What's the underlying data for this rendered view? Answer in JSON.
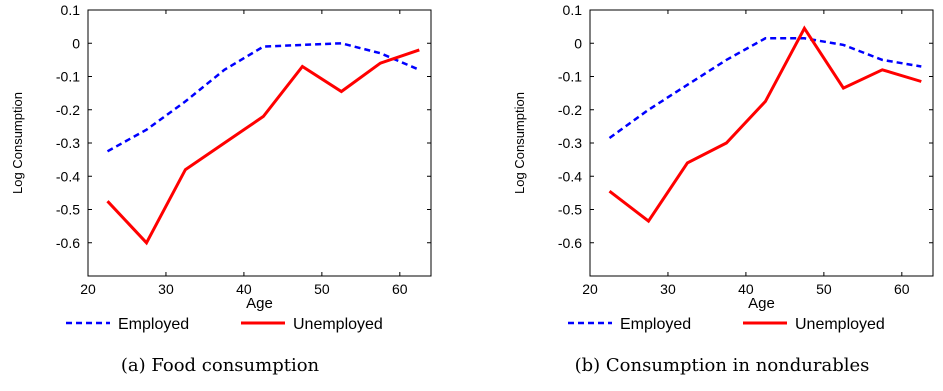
{
  "chart_data": [
    {
      "type": "line",
      "caption": "(a) Food consumption",
      "xlabel": "Age",
      "ylabel": "Log Consumption",
      "xlim": [
        20,
        64
      ],
      "ylim": [
        -0.7,
        0.1
      ],
      "xticks": [
        20,
        30,
        40,
        50,
        60
      ],
      "yticks": [
        0.1,
        0,
        -0.1,
        -0.2,
        -0.3,
        -0.4,
        -0.5,
        -0.6
      ],
      "ytick_labels": [
        "0.1",
        "0",
        "-0.1",
        "-0.2",
        "-0.3",
        "-0.4",
        "-0.5",
        "-0.6"
      ],
      "x": [
        22.5,
        27.5,
        32.5,
        37.5,
        42.5,
        47.5,
        52.5,
        57.5,
        62.5
      ],
      "series": [
        {
          "name": "Employed",
          "color": "#0000ff",
          "dash": "dashed",
          "values": [
            -0.325,
            -0.26,
            -0.175,
            -0.08,
            -0.01,
            -0.005,
            0.0,
            -0.03,
            -0.08
          ]
        },
        {
          "name": "Unemployed",
          "color": "#ff0000",
          "dash": "solid",
          "values": [
            -0.475,
            -0.6,
            -0.38,
            -0.3,
            -0.22,
            -0.07,
            -0.145,
            -0.06,
            -0.02
          ]
        }
      ],
      "legend": "bottom"
    },
    {
      "type": "line",
      "caption": "(b) Consumption in nondurables",
      "xlabel": "Age",
      "ylabel": "Log Consumption",
      "xlim": [
        20,
        64
      ],
      "ylim": [
        -0.7,
        0.1
      ],
      "xticks": [
        20,
        30,
        40,
        50,
        60
      ],
      "yticks": [
        0.1,
        0,
        -0.1,
        -0.2,
        -0.3,
        -0.4,
        -0.5,
        -0.6
      ],
      "ytick_labels": [
        "0.1",
        "0",
        "-0.1",
        "-0.2",
        "-0.3",
        "-0.4",
        "-0.5",
        "-0.6"
      ],
      "x": [
        22.5,
        27.5,
        32.5,
        37.5,
        42.5,
        47.5,
        52.5,
        57.5,
        62.5
      ],
      "series": [
        {
          "name": "Employed",
          "color": "#0000ff",
          "dash": "dashed",
          "values": [
            -0.285,
            -0.2,
            -0.125,
            -0.05,
            0.015,
            0.015,
            -0.005,
            -0.05,
            -0.07
          ]
        },
        {
          "name": "Unemployed",
          "color": "#ff0000",
          "dash": "solid",
          "values": [
            -0.445,
            -0.535,
            -0.36,
            -0.3,
            -0.175,
            0.045,
            -0.135,
            -0.08,
            -0.115
          ]
        }
      ],
      "legend": "bottom"
    }
  ]
}
